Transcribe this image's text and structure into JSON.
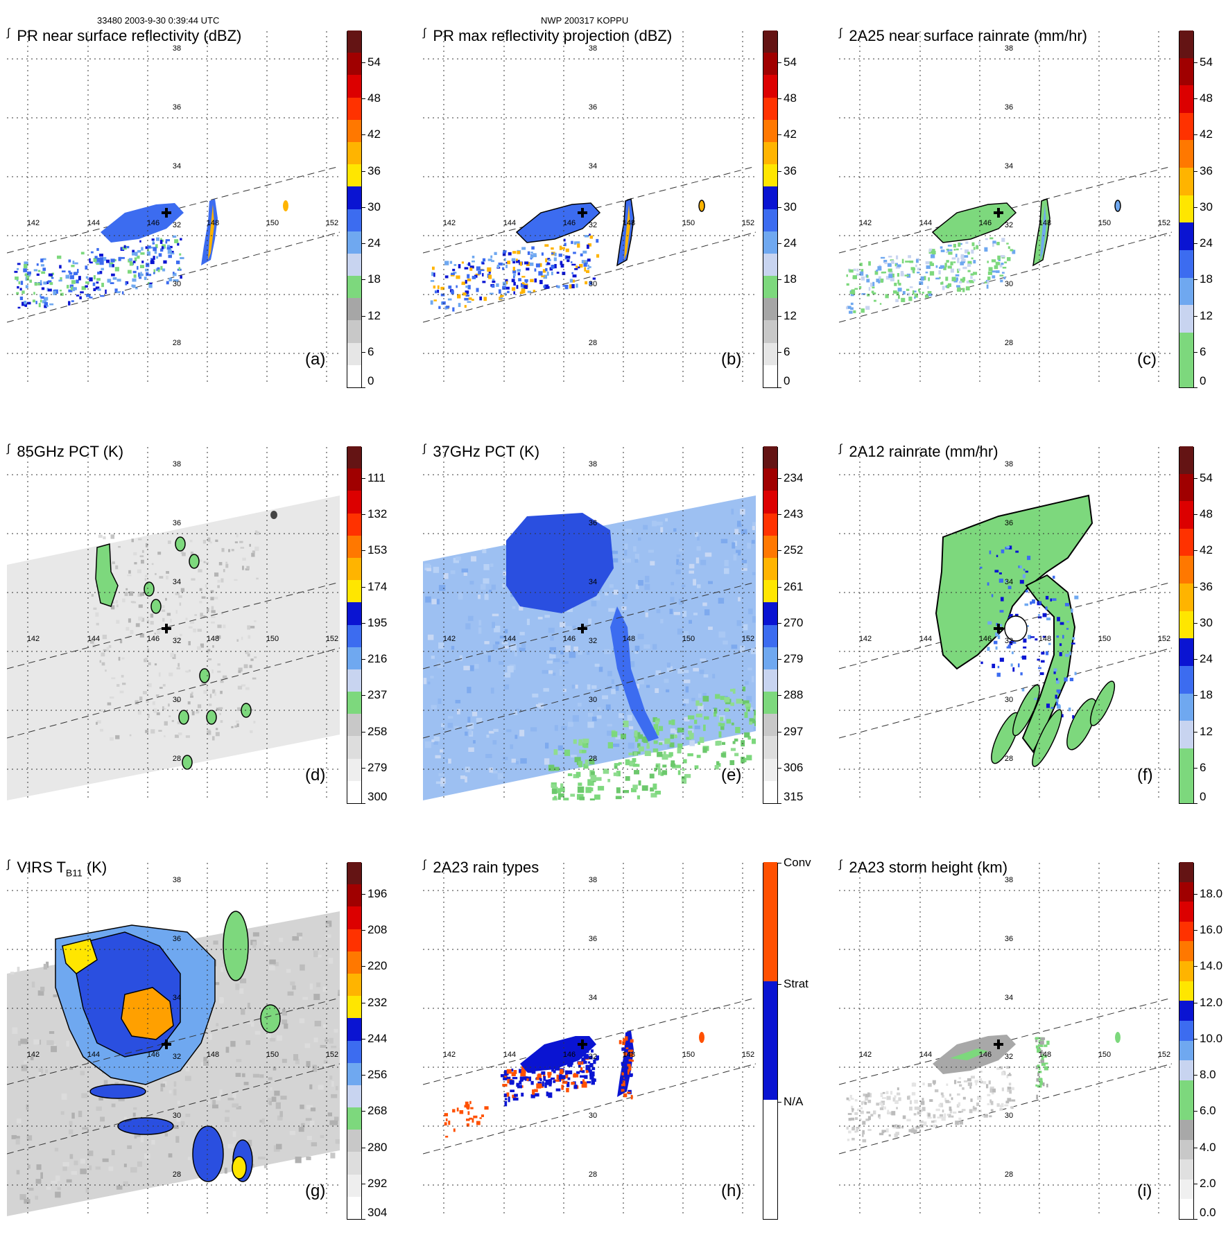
{
  "header": {
    "left": "33480 2003-9-30 0:39:44 UTC",
    "center": "NWP 200317 KOPPU"
  },
  "grid_labels": {
    "lon": [
      "142",
      "144",
      "146",
      "148",
      "150",
      "152"
    ],
    "lat": [
      "38",
      "36",
      "34",
      "32",
      "30",
      "28"
    ]
  },
  "panels": [
    {
      "title": "PR near surface reflectivity (dBZ)",
      "label": "(a)",
      "colorbar": [
        "54",
        "48",
        "42",
        "36",
        "30",
        "24",
        "18",
        "12",
        "6",
        "0"
      ]
    },
    {
      "title": "PR max reflectivity projection (dBZ)",
      "label": "(b)",
      "colorbar": [
        "54",
        "48",
        "42",
        "36",
        "30",
        "24",
        "18",
        "12",
        "6",
        "0"
      ]
    },
    {
      "title": "2A25 near surface rainrate (mm/hr)",
      "label": "(c)",
      "colorbar": [
        "54",
        "48",
        "42",
        "36",
        "30",
        "24",
        "18",
        "12",
        "6",
        "0"
      ]
    },
    {
      "title": "85GHz PCT (K)",
      "label": "(d)",
      "colorbar": [
        "111",
        "132",
        "153",
        "174",
        "195",
        "216",
        "237",
        "258",
        "279",
        "300"
      ]
    },
    {
      "title": "37GHz PCT (K)",
      "label": "(e)",
      "colorbar": [
        "234",
        "243",
        "252",
        "261",
        "270",
        "279",
        "288",
        "297",
        "306",
        "315"
      ]
    },
    {
      "title": "2A12 rainrate (mm/hr)",
      "label": "(f)",
      "colorbar": [
        "54",
        "48",
        "42",
        "36",
        "30",
        "24",
        "18",
        "12",
        "6",
        "0"
      ]
    },
    {
      "title": "VIRS T",
      "title_sub": "B11",
      "title_suffix": " (K)",
      "label": "(g)",
      "colorbar": [
        "196",
        "208",
        "220",
        "232",
        "244",
        "256",
        "268",
        "280",
        "292",
        "304"
      ]
    },
    {
      "title": "2A23 rain types",
      "label": "(h)",
      "colorbar": [
        "Conv",
        "Strat",
        "N/A"
      ]
    },
    {
      "title": "2A23 storm height (km)",
      "label": "(i)",
      "colorbar": [
        "18.0",
        "16.0",
        "14.0",
        "12.0",
        "10.0",
        "8.0",
        "6.0",
        "4.0",
        "2.0",
        "0.0"
      ]
    }
  ],
  "colors": {
    "scale_a": [
      "#ffffff",
      "#e6e6e6",
      "#c8c8c8",
      "#a6a6a6",
      "#7dd87d",
      "#c8d4f0",
      "#6fa8f0",
      "#3c6cf0",
      "#0a14d2",
      "#ffe600",
      "#ffb400",
      "#ff7800",
      "#ff3200",
      "#dc0000",
      "#a00000",
      "#641414"
    ],
    "scale_c": [
      "#7dd87d",
      "#7dd87d",
      "#c8d4f0",
      "#6fa8f0",
      "#3c6cf0",
      "#0a14d2",
      "#ffe600",
      "#ffb400",
      "#ff7800",
      "#ff3200",
      "#dc0000",
      "#a00000",
      "#641414"
    ],
    "scale_h": [
      "#ffffff",
      "#0a14d2",
      "#ff5000"
    ]
  }
}
